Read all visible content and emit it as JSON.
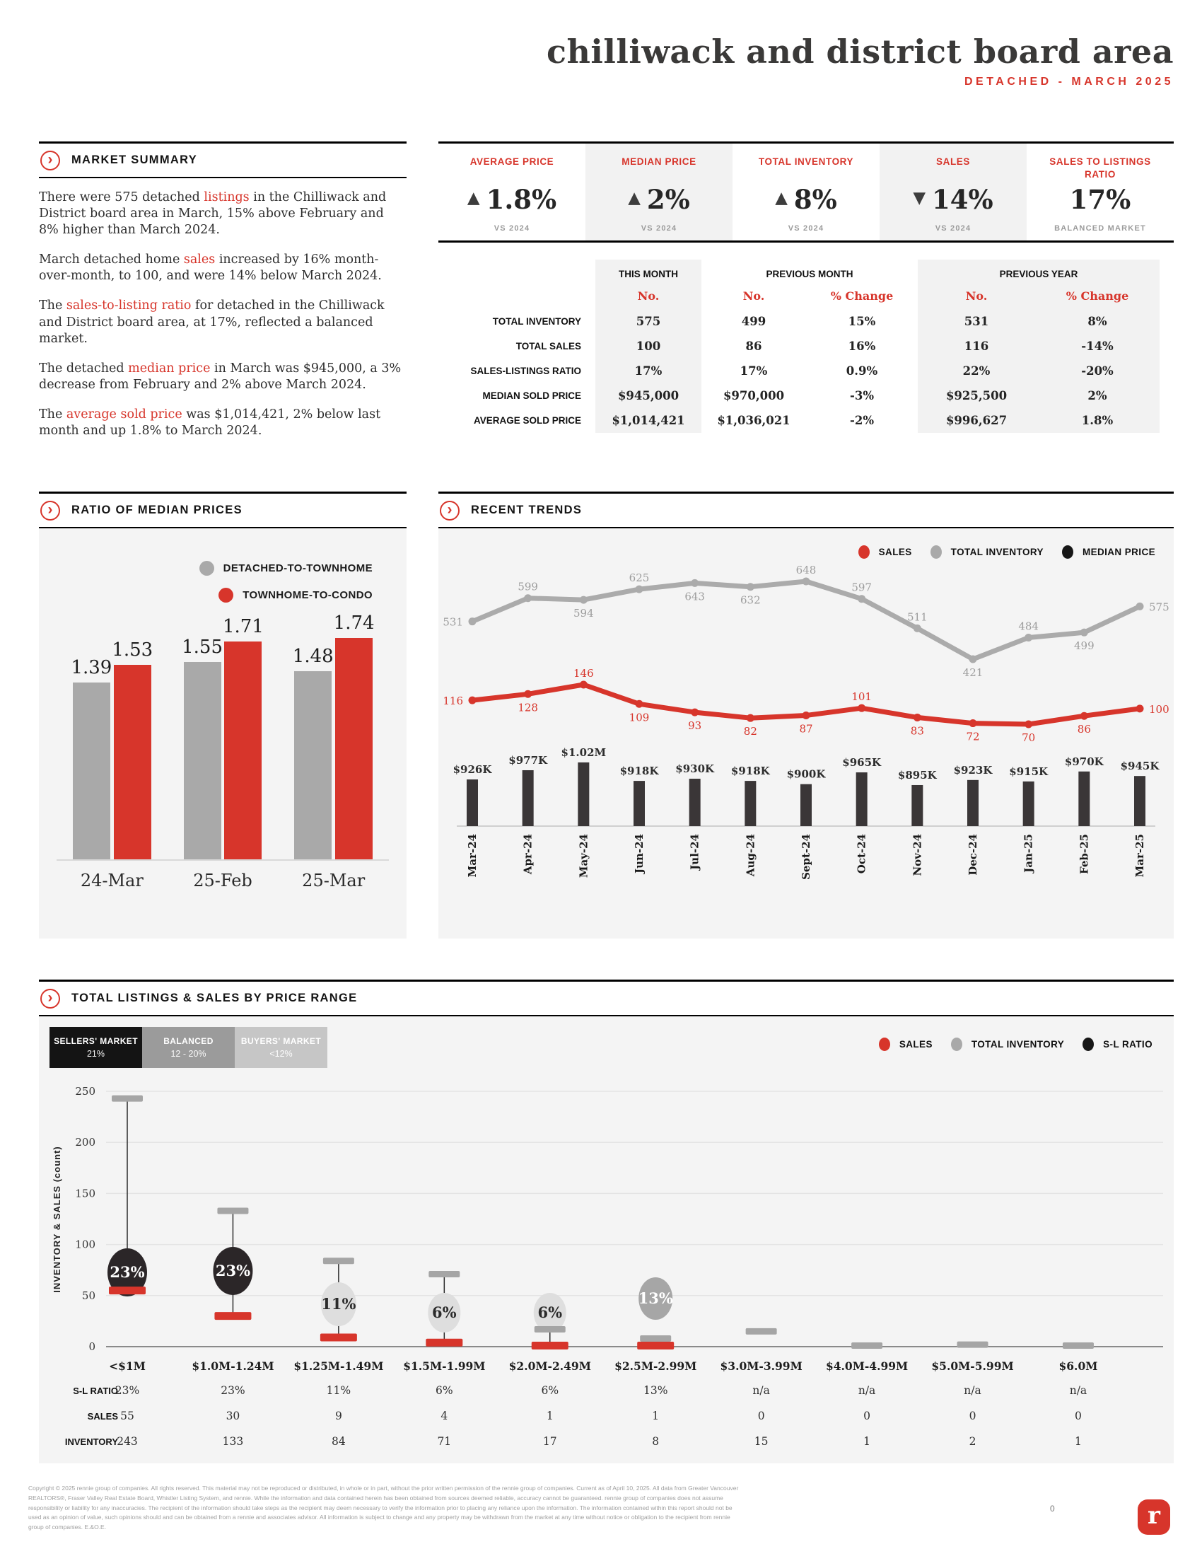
{
  "colors": {
    "red": "#d7352b",
    "gray": "#a9a9a9",
    "dark_bar": "#3a3637",
    "sellers": "#2b2628",
    "balanced": "#a6a6a6",
    "buyers": "#dedede"
  },
  "header": {
    "title": "chilliwack and district board area",
    "subtitle": "DETACHED - MARCH 2025"
  },
  "market_summary": {
    "heading": "MARKET SUMMARY",
    "paragraphs": [
      [
        {
          "t": "There were 575 detached "
        },
        {
          "t": "listings",
          "red": true
        },
        {
          "t": " in the Chilliwack and District board area in March, 15% above February and 8% higher than March 2024."
        }
      ],
      [
        {
          "t": "March detached home "
        },
        {
          "t": "sales",
          "red": true
        },
        {
          "t": " increased by 16% month-over-month, to 100, and were 14% below March 2024."
        }
      ],
      [
        {
          "t": "The "
        },
        {
          "t": "sales-to-listing ratio",
          "red": true
        },
        {
          "t": " for detached in the Chilliwack and District board area, at 17%, reflected a balanced market."
        }
      ],
      [
        {
          "t": "The detached "
        },
        {
          "t": "median price",
          "red": true
        },
        {
          "t": " in March was $945,000, a 3% decrease from February and 2% above March 2024."
        }
      ],
      [
        {
          "t": "The "
        },
        {
          "t": "average sold price",
          "red": true
        },
        {
          "t": " was $1,014,421, 2% below last month and up 1.8% to March 2024."
        }
      ]
    ]
  },
  "kpis": [
    {
      "label": "AVERAGE PRICE",
      "arrow": "▲",
      "value": "1.8%",
      "sub": "VS 2024",
      "shaded": false
    },
    {
      "label": "MEDIAN PRICE",
      "arrow": "▲",
      "value": "2%",
      "sub": "VS 2024",
      "shaded": true
    },
    {
      "label": "TOTAL INVENTORY",
      "arrow": "▲",
      "value": "8%",
      "sub": "VS 2024",
      "shaded": false
    },
    {
      "label": "SALES",
      "arrow": "▼",
      "value": "14%",
      "sub": "VS 2024",
      "shaded": true
    },
    {
      "label": "SALES TO LISTINGS RATIO",
      "arrow": "",
      "value": "17%",
      "sub": "BALANCED MARKET",
      "shaded": false
    }
  ],
  "comparison_table": {
    "groups": [
      "THIS MONTH",
      "PREVIOUS MONTH",
      "PREVIOUS YEAR"
    ],
    "subheads": [
      "No.",
      "No.",
      "% Change",
      "No.",
      "% Change"
    ],
    "rows": [
      {
        "label": "TOTAL INVENTORY",
        "values": [
          "575",
          "499",
          "15%",
          "531",
          "8%"
        ]
      },
      {
        "label": "TOTAL SALES",
        "values": [
          "100",
          "86",
          "16%",
          "116",
          "-14%"
        ]
      },
      {
        "label": "SALES-LISTINGS RATIO",
        "values": [
          "17%",
          "17%",
          "0.9%",
          "22%",
          "-20%"
        ]
      },
      {
        "label": "MEDIAN SOLD PRICE",
        "values": [
          "$945,000",
          "$970,000",
          "-3%",
          "$925,500",
          "2%"
        ]
      },
      {
        "label": "AVERAGE SOLD PRICE",
        "values": [
          "$1,014,421",
          "$1,036,021",
          "-2%",
          "$996,627",
          "1.8%"
        ]
      }
    ]
  },
  "chart_data": [
    {
      "id": "ratio_of_median_prices",
      "type": "bar",
      "title": "RATIO OF MEDIAN PRICES",
      "categories": [
        "24-Mar",
        "25-Feb",
        "25-Mar"
      ],
      "series": [
        {
          "name": "DETACHED-TO-TOWNHOME",
          "color": "#a9a9a9",
          "values": [
            1.39,
            1.55,
            1.48
          ]
        },
        {
          "name": "TOWNHOME-TO-CONDO",
          "color": "#d7352b",
          "values": [
            1.53,
            1.71,
            1.74
          ]
        }
      ],
      "ylim": [
        0,
        2
      ],
      "grid": false,
      "legend_position": "top-right"
    },
    {
      "id": "recent_trends",
      "type": "line+bar",
      "title": "RECENT TRENDS",
      "categories": [
        "Mar-24",
        "Apr-24",
        "May-24",
        "Jun-24",
        "Jul-24",
        "Aug-24",
        "Sept-24",
        "Oct-24",
        "Nov-24",
        "Dec-24",
        "Jan-25",
        "Feb-25",
        "Mar-25"
      ],
      "series": [
        {
          "name": "SALES",
          "type": "line",
          "color": "#d7352b",
          "values": [
            116,
            128,
            146,
            109,
            93,
            82,
            87,
            101,
            83,
            72,
            70,
            86,
            100
          ],
          "label_pos": [
            "l",
            "b",
            "a",
            "b",
            "b",
            "b",
            "b",
            "a",
            "b",
            "b",
            "b",
            "b",
            "r"
          ]
        },
        {
          "name": "TOTAL INVENTORY",
          "type": "line",
          "color": "#ababab",
          "values": [
            531,
            599,
            594,
            625,
            643,
            632,
            648,
            597,
            511,
            421,
            484,
            499,
            575
          ],
          "label_pos": [
            "l",
            "a",
            "b",
            "a",
            "b",
            "b",
            "a",
            "a",
            "a",
            "b",
            "a",
            "b",
            "r"
          ]
        },
        {
          "name": "MEDIAN PRICE",
          "type": "bar",
          "color": "#3a3637",
          "values_k": [
            926,
            977,
            1020,
            918,
            930,
            918,
            900,
            965,
            895,
            923,
            915,
            970,
            945
          ],
          "labels": [
            "$926K",
            "$977K",
            "$1.02M",
            "$918K",
            "$930K",
            "$918K",
            "$900K",
            "$965K",
            "$895K",
            "$923K",
            "$915K",
            "$970K",
            "$945K"
          ]
        }
      ],
      "legend_position": "top-right"
    },
    {
      "id": "listings_sales_by_price_range",
      "type": "bubble",
      "title": "TOTAL LISTINGS & SALES BY PRICE RANGE",
      "ylabel": "INVENTORY & SALES (count)",
      "yticks": [
        0,
        50,
        100,
        150,
        200,
        250
      ],
      "ylim": [
        0,
        250
      ],
      "grid": true,
      "categories": [
        "<$1M",
        "$1.0M-1.24M",
        "$1.25M-1.49M",
        "$1.5M-1.99M",
        "$2.0M-2.49M",
        "$2.5M-2.99M",
        "$3.0M-3.99M",
        "$4.0M-4.99M",
        "$5.0M-5.99M",
        "$6.0M"
      ],
      "row_labels": [
        "S-L RATIO",
        "SALES",
        "INVENTORY"
      ],
      "sl_ratio": [
        "23%",
        "23%",
        "11%",
        "6%",
        "6%",
        "13%",
        "n/a",
        "n/a",
        "n/a",
        "n/a"
      ],
      "sales": [
        55,
        30,
        9,
        4,
        1,
        1,
        0,
        0,
        0,
        0
      ],
      "inventory": [
        243,
        133,
        84,
        71,
        17,
        8,
        15,
        1,
        2,
        1
      ],
      "bubble": [
        {
          "cy": 362,
          "rx": 28,
          "ry": 34,
          "color": "#2b2628",
          "text_color": "#ffffff"
        },
        {
          "cy": 360,
          "rx": 28,
          "ry": 34,
          "color": "#2b2628",
          "text_color": "#ffffff"
        },
        {
          "cy": 407,
          "rx": 25,
          "ry": 31,
          "color": "#dedede",
          "text_color": "#2b2b2b"
        },
        {
          "cy": 419,
          "rx": 23,
          "ry": 28,
          "color": "#dedede",
          "text_color": "#2b2b2b"
        },
        {
          "cy": 419,
          "rx": 23,
          "ry": 28,
          "color": "#dedede",
          "text_color": "#2b2b2b"
        },
        {
          "cy": 399,
          "rx": 24,
          "ry": 30,
          "color": "#a6a6a6",
          "text_color": "#ffffff"
        },
        null,
        null,
        null,
        null
      ],
      "market_legend": [
        {
          "label": "SELLERS' MARKET",
          "range": "21%",
          "color": "#141414"
        },
        {
          "label": "BALANCED",
          "range": "12 - 20%",
          "color": "#9b9b9b"
        },
        {
          "label": "BUYERS' MARKET",
          "range": "<12%",
          "color": "#c6c6c6"
        }
      ],
      "legend": [
        "SALES",
        "TOTAL INVENTORY",
        "S-L RATIO"
      ]
    }
  ],
  "footer": {
    "disclaimer": "Copyright © 2025 rennie group of companies. All rights reserved. This material may not be reproduced or distributed, in whole or in part, without the prior written permission of the rennie group of companies. Current as of April 10, 2025. All data from Greater Vancouver REALTORS®, Fraser Valley Real Estate Board, Whistler Listing System, and rennie. While the information and data contained herein has been obtained from sources deemed reliable, accuracy cannot be guaranteed. rennie group of companies does not assume responsibility or liability for any inaccuracies. The recipient of the information should take steps as the recipient may deem necessary to verify the information prior to placing any reliance upon the information. The information contained within this report should not be used as an opinion of value, such opinions should and can be obtained from a rennie and associates advisor. All information is subject to change and any property may be withdrawn from the market at any time without notice or obligation to the recipient from rennie group of companies. E.&O.E.",
    "page_number": "0",
    "logo_letter": "r"
  }
}
